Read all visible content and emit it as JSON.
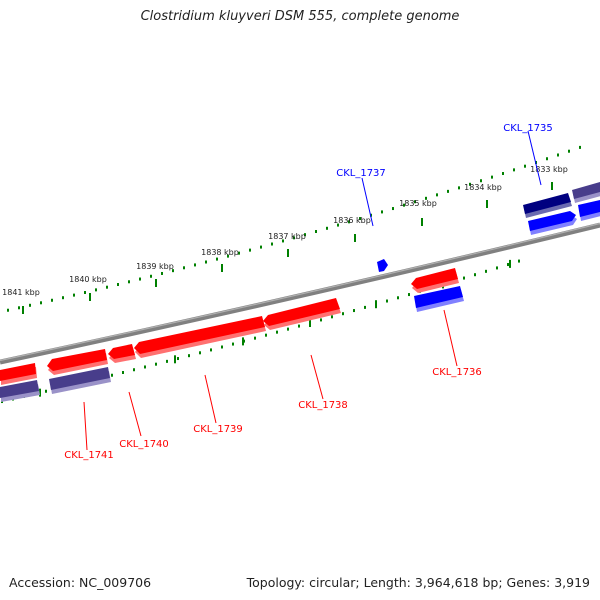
{
  "header": {
    "title": "Clostridium kluyveri DSM 555, complete genome"
  },
  "footer": {
    "accession": "Accession: NC_009706",
    "summary": "Topology: circular; Length: 3,964,618 bp; Genes: 3,919"
  },
  "colors": {
    "forward_gene": "#0000ff",
    "forward_gene_dark": "#000080",
    "forward_gene_muted": "#483d8b",
    "reverse_gene": "#ff0000",
    "tick": "#008000",
    "backbone": "#808080"
  },
  "ticks": {
    "major": [
      {
        "label": "1841 kbp"
      },
      {
        "label": "1840 kbp"
      },
      {
        "label": "1839 kbp"
      },
      {
        "label": "1838 kbp"
      },
      {
        "label": "1837 kbp"
      },
      {
        "label": "1836 kbp"
      },
      {
        "label": "1835 kbp"
      },
      {
        "label": "1834 kbp"
      },
      {
        "label": "1833 kbp"
      }
    ]
  },
  "genes": [
    {
      "id": "CKL_1735",
      "strand": "+",
      "color_key": "forward_gene"
    },
    {
      "id": "CKL_1736",
      "strand": "-",
      "color_key": "reverse_gene"
    },
    {
      "id": "CKL_1737",
      "strand": "+",
      "color_key": "forward_gene"
    },
    {
      "id": "CKL_1738",
      "strand": "-",
      "color_key": "reverse_gene"
    },
    {
      "id": "CKL_1739",
      "strand": "-",
      "color_key": "reverse_gene"
    },
    {
      "id": "CKL_1740",
      "strand": "-",
      "color_key": "reverse_gene"
    },
    {
      "id": "CKL_1741",
      "strand": "-",
      "color_key": "reverse_gene"
    }
  ]
}
